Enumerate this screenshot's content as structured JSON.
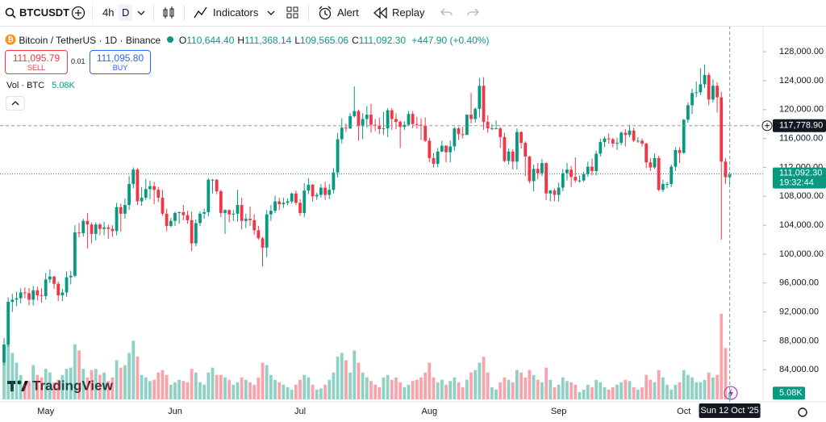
{
  "toolbar": {
    "symbol": "BTCUSDT",
    "interval": "4h",
    "interval_active": "D",
    "indicators": "Indicators",
    "alert": "Alert",
    "replay": "Replay"
  },
  "legend": {
    "title": "Bitcoin / TetherUS · 1D · Binance",
    "ohlc": [
      {
        "label": "O",
        "value": "110,644.40"
      },
      {
        "label": "H",
        "value": "111,368.14"
      },
      {
        "label": "L",
        "value": "109,565.06"
      },
      {
        "label": "C",
        "value": "111,092.30"
      }
    ],
    "change": "+447.90 (+0.40%)",
    "sell_price": "111,095.79",
    "sell": "SELL",
    "spread": "0.01",
    "buy_price": "111,095.80",
    "buy": "BUY",
    "volume_title": "Vol · BTC"
  },
  "watermark": "TradingView",
  "chart_data": {
    "type": "candlestick",
    "up_color": "#089981",
    "down_color": "#f23645",
    "categories": [
      null,
      null,
      null,
      null,
      null,
      null,
      null,
      null,
      null,
      null,
      "May",
      null,
      null,
      null,
      null,
      null,
      null,
      null,
      null,
      null,
      null,
      null,
      null,
      null,
      null,
      null,
      null,
      null,
      null,
      null,
      null,
      null,
      null,
      null,
      null,
      null,
      null,
      null,
      null,
      null,
      null,
      "Jun",
      null,
      null,
      null,
      null,
      null,
      null,
      null,
      null,
      null,
      null,
      null,
      null,
      null,
      null,
      null,
      null,
      null,
      null,
      null,
      null,
      null,
      null,
      null,
      null,
      null,
      null,
      null,
      null,
      null,
      "Jul",
      null,
      null,
      null,
      null,
      null,
      null,
      null,
      null,
      null,
      null,
      null,
      null,
      null,
      null,
      null,
      null,
      null,
      null,
      null,
      null,
      null,
      null,
      null,
      null,
      null,
      null,
      null,
      null,
      null,
      null,
      "Aug",
      null,
      null,
      null,
      null,
      null,
      null,
      null,
      null,
      null,
      null,
      null,
      null,
      null,
      null,
      null,
      null,
      null,
      null,
      null,
      null,
      null,
      null,
      null,
      null,
      null,
      null,
      null,
      null,
      null,
      null,
      "Sep",
      null,
      null,
      null,
      null,
      null,
      null,
      null,
      null,
      null,
      null,
      null,
      null,
      null,
      null,
      null,
      null,
      null,
      null,
      null,
      null,
      null,
      null,
      null,
      null,
      null,
      null,
      null,
      null,
      null,
      "Oct",
      null,
      null,
      null,
      null,
      null,
      null,
      null,
      null,
      null,
      null,
      null
    ],
    "open": [
      85000,
      87500,
      93400,
      93700,
      93900,
      94700,
      94600,
      93700,
      95000,
      94300,
      94200,
      96500,
      96900,
      95900,
      94300,
      94700,
      96800,
      97000,
      103000,
      102900,
      104600,
      104100,
      102800,
      104100,
      103500,
      103700,
      103500,
      103200,
      106500,
      105600,
      106800,
      109700,
      111700,
      107300,
      107800,
      109000,
      109400,
      108900,
      107800,
      105600,
      103900,
      104600,
      105700,
      105800,
      105400,
      104700,
      101500,
      104300,
      105600,
      105800,
      110300,
      110300,
      108700,
      105700,
      106100,
      105500,
      105600,
      106800,
      104600,
      104900,
      104700,
      103300,
      102200,
      100900,
      105500,
      106000,
      107300,
      106900,
      107100,
      107300,
      108400,
      107100,
      105700,
      108800,
      109600,
      108000,
      108200,
      109200,
      108200,
      108900,
      111300,
      115900,
      117500,
      117400,
      119100,
      119800,
      117700,
      118700,
      119300,
      117900,
      117800,
      117300,
      117400,
      119900,
      118700,
      118300,
      117600,
      117900,
      119400,
      118000,
      117900,
      117800,
      115700,
      113300,
      112500,
      114200,
      115000,
      114100,
      114900,
      117400,
      116600,
      116500,
      119300,
      118700,
      120100,
      123300,
      118300,
      117400,
      117400,
      117400,
      116200,
      112900,
      114200,
      112800,
      116900,
      115400,
      113500,
      110100,
      111800,
      111200,
      112600,
      108400,
      108800,
      108200,
      109200,
      111200,
      111700,
      110700,
      110200,
      110200,
      111100,
      112100,
      111500,
      113900,
      115500,
      116000,
      115900,
      115300,
      115400,
      116800,
      116500,
      117100,
      115700,
      115700,
      115300,
      112700,
      112000,
      113300,
      108900,
      109700,
      109700,
      112100,
      114400,
      114000,
      118600,
      120600,
      122300,
      122400,
      123500,
      124800,
      121400,
      123300,
      121700,
      112800,
      110644.4
    ],
    "high": [
      88400,
      94000,
      94500,
      94800,
      95300,
      95400,
      95300,
      95600,
      95500,
      95300,
      97400,
      97900,
      97000,
      96200,
      95200,
      97600,
      97700,
      104000,
      104300,
      104900,
      105700,
      104400,
      104400,
      104300,
      104500,
      104100,
      104000,
      107100,
      107000,
      107700,
      110800,
      112000,
      111900,
      109300,
      110400,
      110200,
      110000,
      109300,
      108900,
      106300,
      105000,
      105900,
      105900,
      106800,
      106000,
      105900,
      104800,
      105900,
      106300,
      110500,
      110400,
      110400,
      108900,
      106200,
      106200,
      106100,
      108900,
      107800,
      105600,
      106600,
      105500,
      103900,
      102400,
      106100,
      106800,
      108100,
      107800,
      107800,
      107700,
      108500,
      108800,
      107600,
      109800,
      110500,
      109700,
      108500,
      109700,
      110000,
      109700,
      111900,
      116800,
      118800,
      118100,
      119500,
      123200,
      120000,
      119500,
      120500,
      120800,
      118700,
      118900,
      119700,
      120200,
      120200,
      119500,
      118500,
      118400,
      119800,
      119800,
      119000,
      118800,
      118900,
      116100,
      114000,
      114700,
      115700,
      115100,
      115700,
      117600,
      117600,
      117600,
      119300,
      122300,
      120300,
      124400,
      124500,
      119200,
      118000,
      118500,
      117600,
      116800,
      114600,
      114500,
      117400,
      117000,
      115600,
      113600,
      112400,
      112600,
      113200,
      112700,
      108900,
      109100,
      109900,
      111800,
      112600,
      112200,
      113400,
      110900,
      111400,
      112800,
      113200,
      114300,
      116000,
      116300,
      116700,
      116100,
      116100,
      117000,
      117300,
      117900,
      117500,
      116200,
      116000,
      115400,
      113300,
      113900,
      113600,
      110300,
      110000,
      112400,
      114800,
      114800,
      118700,
      121000,
      122900,
      123900,
      125700,
      126200,
      125100,
      124200,
      123800,
      122500,
      113300,
      111368.14
    ],
    "low": [
      84600,
      87200,
      92000,
      92800,
      93200,
      93900,
      92900,
      92900,
      93600,
      93300,
      93700,
      96000,
      95200,
      93500,
      93500,
      94100,
      95800,
      96800,
      102300,
      102400,
      100800,
      101500,
      101900,
      102600,
      102600,
      102100,
      102400,
      102600,
      103100,
      104900,
      106100,
      109100,
      106800,
      106700,
      107500,
      107600,
      106900,
      107200,
      105300,
      103200,
      103700,
      103900,
      104200,
      104700,
      104200,
      100400,
      101100,
      103900,
      104900,
      105200,
      108400,
      108300,
      105100,
      102800,
      104400,
      104600,
      104500,
      103400,
      103600,
      103900,
      102700,
      102000,
      98300,
      99600,
      104600,
      105700,
      106100,
      106400,
      106800,
      107000,
      106800,
      105300,
      105100,
      108300,
      107300,
      107500,
      107800,
      107500,
      107600,
      108400,
      110600,
      115300,
      116900,
      117300,
      118900,
      115700,
      115900,
      117500,
      116800,
      117000,
      116600,
      116500,
      116200,
      117200,
      117300,
      114700,
      117200,
      117800,
      117400,
      117400,
      115800,
      115500,
      112700,
      112000,
      112000,
      114100,
      112700,
      112700,
      114300,
      115800,
      116000,
      116500,
      118100,
      118200,
      118900,
      117200,
      116800,
      117200,
      117300,
      114700,
      112700,
      112400,
      111700,
      111700,
      114600,
      110800,
      109800,
      108700,
      110400,
      110800,
      107500,
      107300,
      107300,
      107300,
      108700,
      110200,
      109300,
      109900,
      109900,
      110000,
      110700,
      110900,
      110900,
      113500,
      114800,
      115300,
      114800,
      114400,
      115100,
      114900,
      116200,
      115500,
      115400,
      114900,
      111900,
      111500,
      111800,
      108700,
      108600,
      109100,
      109300,
      111500,
      112600,
      113900,
      118200,
      119400,
      121700,
      122000,
      123000,
      120600,
      121000,
      119600,
      102000,
      109700,
      109565.06
    ],
    "close": [
      87500,
      93400,
      93700,
      93900,
      94700,
      94600,
      93700,
      95000,
      94300,
      94200,
      96500,
      96900,
      95900,
      94300,
      94700,
      96800,
      97000,
      103000,
      102900,
      104600,
      104100,
      102800,
      104100,
      103500,
      103700,
      103500,
      103200,
      106500,
      105600,
      106800,
      109700,
      111700,
      107300,
      107800,
      109000,
      109400,
      108900,
      107800,
      105600,
      103900,
      104600,
      105700,
      105800,
      105400,
      104700,
      101500,
      104300,
      105600,
      105800,
      110300,
      110300,
      108700,
      105700,
      106100,
      105500,
      105600,
      106800,
      104600,
      104900,
      104700,
      103300,
      102200,
      100900,
      105500,
      106000,
      107300,
      106900,
      107100,
      107300,
      108400,
      107100,
      105700,
      108800,
      109600,
      108000,
      108200,
      109200,
      108200,
      108900,
      111300,
      115900,
      117500,
      117400,
      119100,
      119800,
      117700,
      118700,
      119300,
      117900,
      117800,
      117300,
      117400,
      119900,
      118700,
      118300,
      117600,
      117900,
      119400,
      118000,
      117900,
      117800,
      115700,
      113300,
      112500,
      114200,
      115000,
      114100,
      114900,
      117400,
      116600,
      116500,
      119300,
      118700,
      120100,
      123300,
      118300,
      117400,
      117400,
      117400,
      116200,
      112900,
      114200,
      112800,
      116900,
      115400,
      113500,
      110100,
      111800,
      111200,
      112600,
      108400,
      108800,
      108200,
      109200,
      111200,
      111700,
      110700,
      110200,
      110200,
      111100,
      112100,
      111500,
      113900,
      115500,
      116000,
      115900,
      115300,
      115400,
      116800,
      116500,
      117100,
      115700,
      115700,
      115300,
      112700,
      112000,
      113300,
      108900,
      109700,
      109700,
      112100,
      114400,
      114000,
      118600,
      120600,
      122300,
      122400,
      123500,
      124800,
      121400,
      123300,
      121700,
      112800,
      110644.4,
      111092.3
    ],
    "volume": {
      "values": [
        30,
        45,
        38,
        30,
        20,
        12,
        15,
        28,
        20,
        18,
        25,
        22,
        14,
        16,
        20,
        25,
        26,
        45,
        40,
        25,
        18,
        24,
        25,
        20,
        22,
        15,
        18,
        32,
        26,
        28,
        38,
        48,
        35,
        20,
        18,
        15,
        16,
        22,
        24,
        20,
        12,
        14,
        16,
        15,
        14,
        25,
        22,
        14,
        12,
        22,
        26,
        20,
        20,
        18,
        16,
        12,
        14,
        18,
        16,
        14,
        12,
        18,
        30,
        28,
        20,
        16,
        14,
        12,
        10,
        8,
        12,
        16,
        20,
        18,
        12,
        8,
        9,
        12,
        16,
        22,
        35,
        38,
        32,
        22,
        40,
        30,
        22,
        18,
        15,
        12,
        10,
        18,
        20,
        16,
        18,
        14,
        10,
        12,
        15,
        16,
        18,
        22,
        30,
        18,
        14,
        16,
        12,
        15,
        18,
        14,
        10,
        16,
        22,
        24,
        30,
        35,
        22,
        10,
        8,
        14,
        18,
        16,
        14,
        24,
        22,
        18,
        24,
        20,
        16,
        14,
        26,
        16,
        10,
        12,
        18,
        15,
        14,
        12,
        6,
        8,
        12,
        10,
        16,
        14,
        10,
        8,
        10,
        12,
        14,
        16,
        15,
        10,
        8,
        10,
        20,
        16,
        14,
        24,
        18,
        12,
        8,
        12,
        14,
        24,
        20,
        18,
        14,
        14,
        16,
        22,
        18,
        20,
        70,
        42,
        5.08
      ],
      "last_label": "5.08K",
      "ylim": [
        0,
        300
      ]
    },
    "ylim": [
      79900,
      130700
    ],
    "yticks": [
      {
        "value": 84000,
        "label": "84,000.00"
      },
      {
        "value": 88000,
        "label": "88,000.00"
      },
      {
        "value": 92000,
        "label": "92,000.00"
      },
      {
        "value": 96000,
        "label": "96,000.00"
      },
      {
        "value": 100000,
        "label": "100,000.00"
      },
      {
        "value": 104000,
        "label": "104,000.00"
      },
      {
        "value": 108000,
        "label": "108,000.00"
      },
      {
        "value": 112000,
        "label": "112,000.00"
      },
      {
        "value": 116000,
        "label": "116,000.00"
      },
      {
        "value": 120000,
        "label": "120,000.00"
      },
      {
        "value": 124000,
        "label": "124,000.00"
      },
      {
        "value": 128000,
        "label": "128,000.00"
      }
    ],
    "grid": false,
    "last_price": {
      "value": 111092.3,
      "label": "111,092.30",
      "countdown": "19:32:44"
    },
    "crosshair": {
      "value": 117778.9,
      "label": "117,778.90",
      "date": "Sun 12 Oct '25"
    }
  }
}
